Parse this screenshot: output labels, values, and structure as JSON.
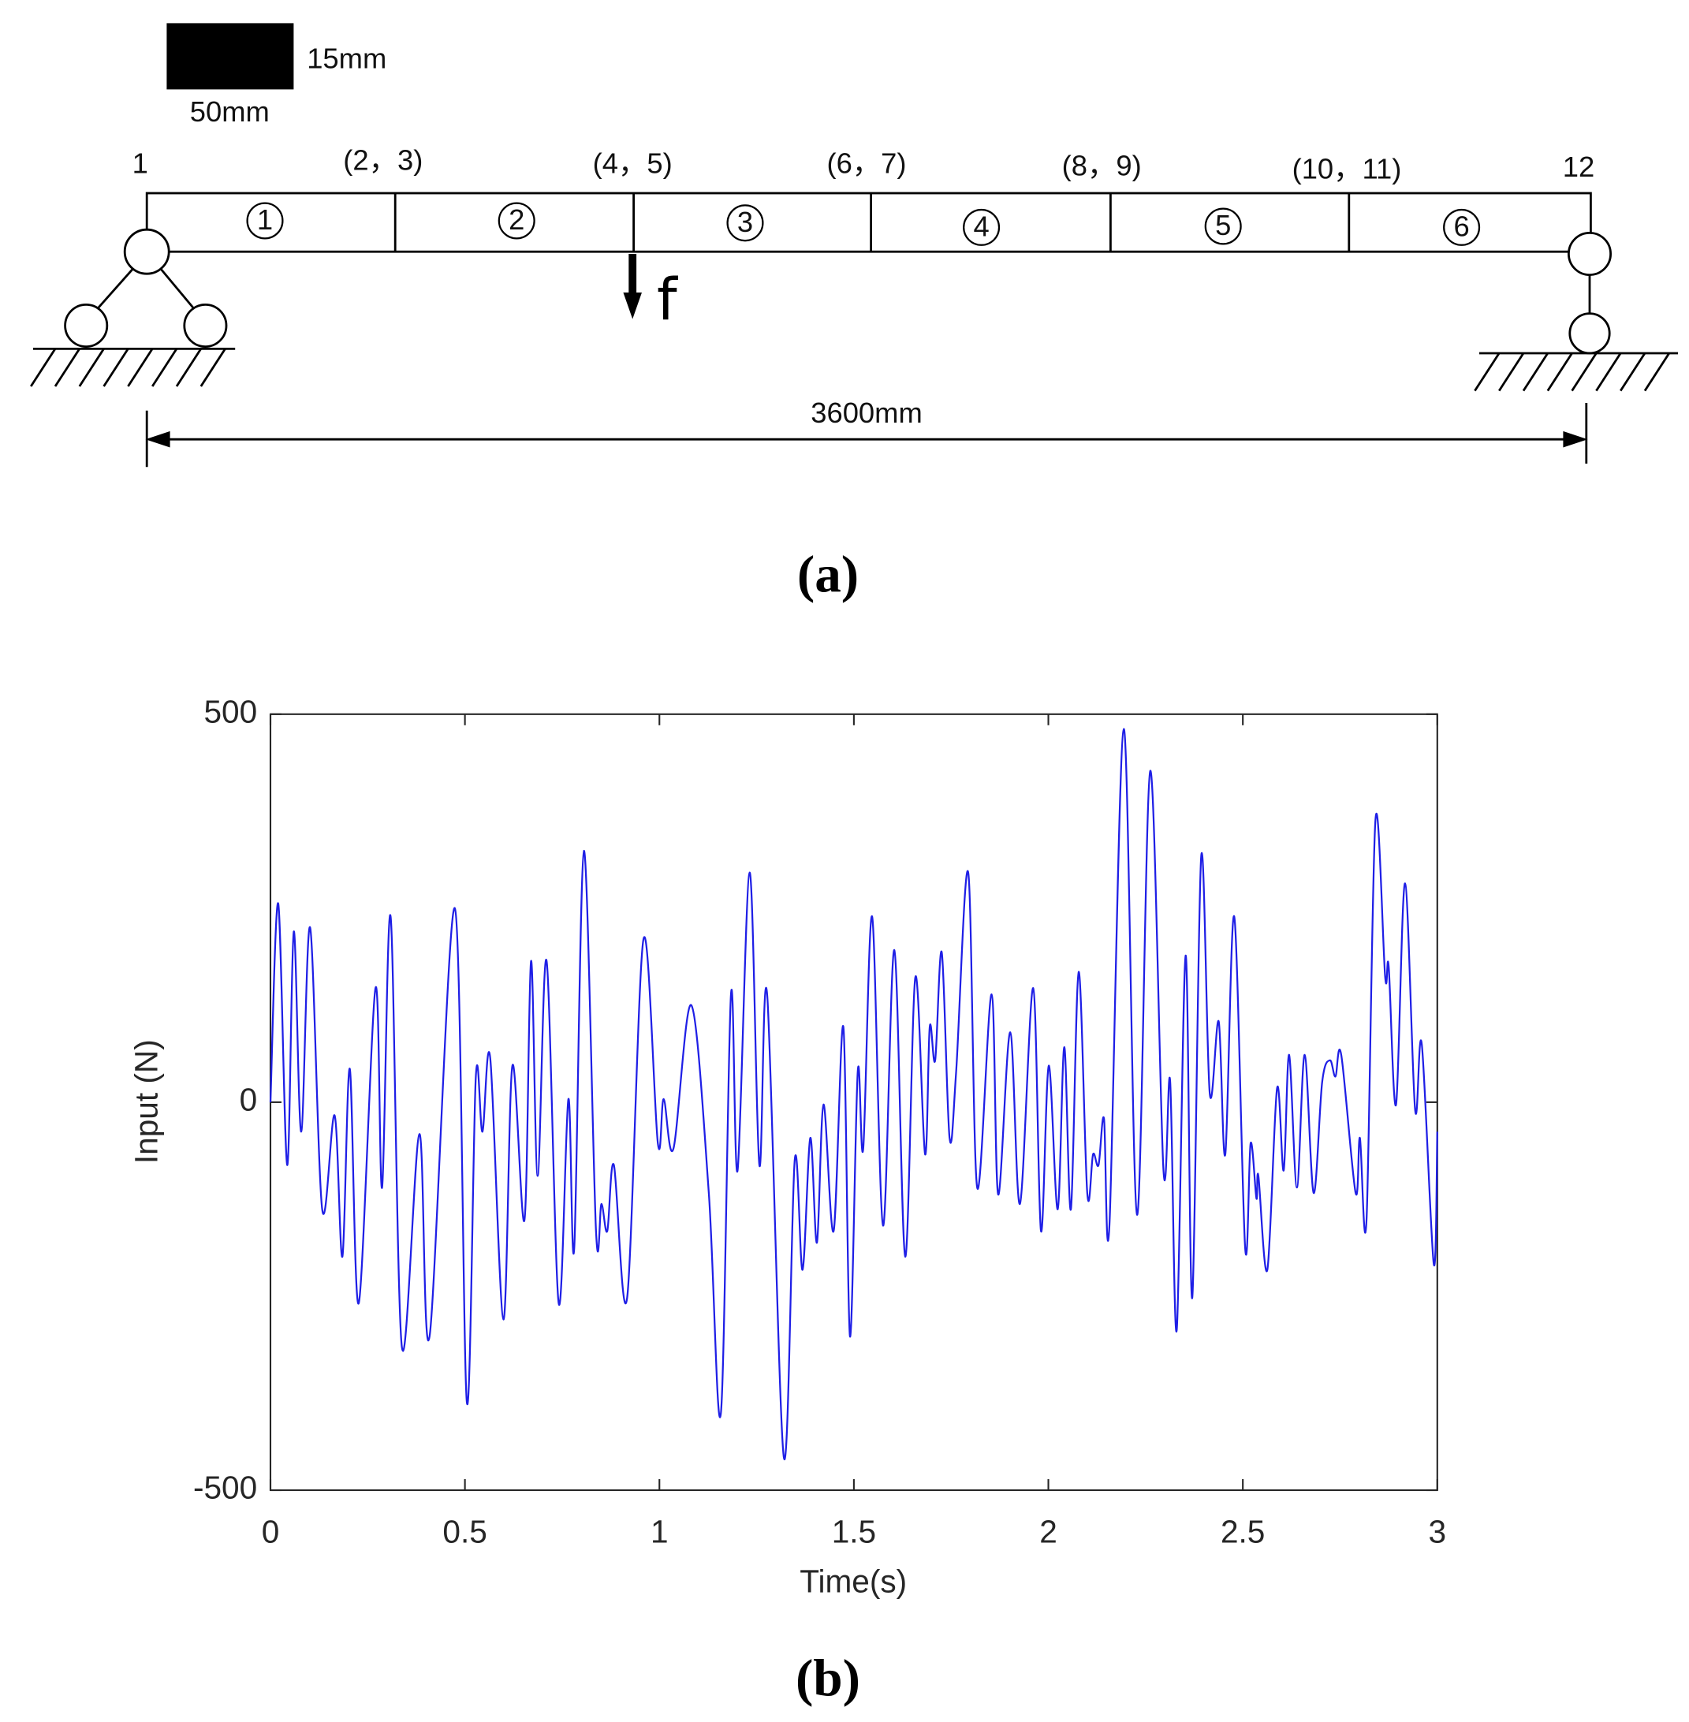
{
  "diagram": {
    "section_height": "15mm",
    "section_width": "50mm",
    "nodes": [
      "1",
      "(2，3)",
      "(4，5)",
      "(6，7)",
      "(8，9)",
      "(10，11)",
      "12"
    ],
    "elements": [
      "1",
      "2",
      "3",
      "4",
      "5",
      "6"
    ],
    "force": "f",
    "span": "3600mm",
    "caption": "(a)"
  },
  "chart_data": {
    "type": "line",
    "caption": "(b)",
    "xlabel": "Time(s)",
    "ylabel": "Input (N)",
    "xlim": [
      0,
      3
    ],
    "ylim": [
      -500,
      500
    ],
    "xticks": [
      0,
      0.5,
      1,
      1.5,
      2,
      2.5,
      3
    ],
    "yticks": [
      -500,
      0,
      500
    ],
    "color": "#1f1fe6",
    "x": [
      0,
      0.02,
      0.043,
      0.06,
      0.079,
      0.102,
      0.133,
      0.165,
      0.185,
      0.204,
      0.227,
      0.27,
      0.287,
      0.309,
      0.338,
      0.383,
      0.409,
      0.474,
      0.505,
      0.528,
      0.545,
      0.565,
      0.599,
      0.622,
      0.653,
      0.67,
      0.687,
      0.71,
      0.741,
      0.766,
      0.781,
      0.806,
      0.837,
      0.851,
      0.866,
      0.883,
      0.917,
      0.959,
      0.996,
      1.011,
      1.036,
      1.082,
      1.127,
      1.158,
      1.184,
      1.201,
      1.232,
      1.257,
      1.277,
      1.32,
      1.348,
      1.368,
      1.388,
      1.405,
      1.422,
      1.448,
      1.473,
      1.49,
      1.51,
      1.524,
      1.547,
      1.575,
      1.604,
      1.632,
      1.658,
      1.683,
      1.695,
      1.709,
      1.726,
      1.746,
      1.763,
      1.794,
      1.817,
      1.854,
      1.871,
      1.902,
      1.927,
      1.961,
      1.981,
      2.001,
      2.024,
      2.041,
      2.058,
      2.078,
      2.1,
      2.115,
      2.129,
      2.143,
      2.157,
      2.194,
      2.228,
      2.262,
      2.296,
      2.313,
      2.33,
      2.353,
      2.37,
      2.393,
      2.415,
      2.438,
      2.455,
      2.478,
      2.506,
      2.52,
      2.535,
      2.54,
      2.563,
      2.588,
      2.605,
      2.619,
      2.639,
      2.659,
      2.682,
      2.704,
      2.724,
      2.738,
      2.753,
      2.79,
      2.801,
      2.818,
      2.841,
      2.866,
      2.875,
      2.894,
      2.917,
      2.943,
      2.96,
      2.991,
      3.0
    ],
    "values": [
      0,
      256,
      -81,
      220,
      -38,
      225,
      -138,
      -17,
      -199,
      43,
      -259,
      147,
      -110,
      239,
      -316,
      -41,
      -302,
      250,
      -387,
      33,
      -38,
      57,
      -280,
      47,
      -152,
      182,
      -95,
      182,
      -259,
      4,
      -188,
      324,
      -166,
      -131,
      -166,
      -81,
      -252,
      210,
      -53,
      4,
      -60,
      125,
      -117,
      -401,
      139,
      -88,
      296,
      -81,
      139,
      -458,
      -74,
      -216,
      -46,
      -181,
      -3,
      -166,
      97,
      -302,
      40,
      -60,
      239,
      -159,
      196,
      -199,
      161,
      -67,
      97,
      54,
      193,
      -46,
      40,
      296,
      -110,
      139,
      -119,
      90,
      -131,
      147,
      -166,
      47,
      -138,
      71,
      -138,
      168,
      -117,
      -67,
      -81,
      -21,
      -159,
      481,
      -145,
      427,
      -88,
      28,
      -294,
      189,
      -252,
      317,
      11,
      104,
      -67,
      239,
      -188,
      -53,
      -124,
      -95,
      -216,
      18,
      -88,
      61,
      -110,
      61,
      -117,
      26,
      54,
      33,
      61,
      -117,
      -46,
      -152,
      364,
      161,
      175,
      -3,
      282,
      -10,
      75,
      -209,
      -38
    ]
  }
}
